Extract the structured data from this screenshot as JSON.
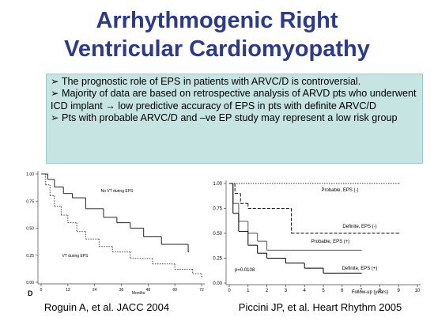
{
  "title": [
    "Arrhythmogenic Right",
    "Ventricular Cardiomyopathy"
  ],
  "bullets": [
    "➢ The prognostic role of EPS in patients with ARVC/D is controversial.",
    "➢ Majority of data are based on retrospective analysis of ARVD pts who underwent ICD implant → low predictive accuracy of EPS in pts with definite ARVC/D",
    "➢ Pts with probable ARVC/D and –ve EP study may represent a low risk group"
  ],
  "charts": [
    {
      "type": "line",
      "panel_label": "D",
      "xlabel": "Months",
      "xlim": [
        0,
        72
      ],
      "xticks": [
        0,
        12,
        24,
        36,
        48,
        60,
        72
      ],
      "ylim": [
        0,
        1
      ],
      "yticks": [
        {
          "value": 0,
          "label": "0.00"
        },
        {
          "value": 0.25,
          "label": "0.25"
        },
        {
          "value": 0.5,
          "label": "0.50"
        },
        {
          "value": 0.75,
          "label": "0.75"
        },
        {
          "value": 1,
          "label": "1.00"
        }
      ],
      "series": [
        {
          "name": "No VT during EPS",
          "color": "#222222",
          "line_style": "solid",
          "x": [
            0,
            3,
            6,
            10,
            14,
            20,
            28,
            34,
            40,
            46,
            54,
            66
          ],
          "values": [
            1,
            0.95,
            0.88,
            0.82,
            0.78,
            0.68,
            0.6,
            0.55,
            0.5,
            0.42,
            0.35,
            0.28
          ]
        },
        {
          "name": "VT during EPS",
          "color": "#444444",
          "line_style": "dotted",
          "x": [
            0,
            2,
            4,
            6,
            9,
            12,
            16,
            20,
            26,
            32,
            40,
            50,
            60,
            68,
            72
          ],
          "values": [
            1,
            0.9,
            0.8,
            0.7,
            0.62,
            0.55,
            0.47,
            0.4,
            0.33,
            0.28,
            0.22,
            0.17,
            0.12,
            0.08,
            0.05
          ]
        }
      ],
      "caption": "Roguin A, et al. JACC 2004"
    },
    {
      "type": "line",
      "xlabel": "Follow-up (years)",
      "xlim": [
        0,
        10
      ],
      "xticks": [
        0,
        1,
        2,
        3,
        4,
        5,
        6,
        7,
        8,
        9,
        10
      ],
      "ylim": [
        0,
        1
      ],
      "yticks": [
        {
          "value": 0,
          "label": "0.00"
        },
        {
          "value": 0.25,
          "label": "0.25"
        },
        {
          "value": 0.5,
          "label": "0.50"
        },
        {
          "value": 0.75,
          "label": "0.75"
        },
        {
          "value": 1,
          "label": "1.00"
        }
      ],
      "annotation": "p=0.0108",
      "series": [
        {
          "name": "Probable, EPS (-)",
          "color": "#333333",
          "line_style": "dotted",
          "x": [
            0,
            9
          ],
          "values": [
            1,
            1
          ]
        },
        {
          "name": "Definite, EPS (-)",
          "color": "#111111",
          "line_style": "dashed",
          "x": [
            0,
            0.3,
            0.6,
            1,
            3.3,
            9
          ],
          "values": [
            1,
            0.9,
            0.8,
            0.75,
            0.5,
            0.5
          ]
        },
        {
          "name": "Probable, EPS (+)",
          "color": "#555555",
          "line_style": "solid",
          "x": [
            0,
            0.2,
            0.5,
            1,
            1.5,
            2,
            7
          ],
          "values": [
            1,
            0.8,
            0.62,
            0.5,
            0.42,
            0.33,
            0.33
          ]
        },
        {
          "name": "Definite, EPS (+)",
          "color": "#000000",
          "line_style": "solid",
          "x": [
            0,
            0.2,
            0.5,
            1,
            1.5,
            2,
            3,
            4,
            5,
            7
          ],
          "values": [
            1,
            0.7,
            0.52,
            0.38,
            0.3,
            0.25,
            0.2,
            0.15,
            0.1,
            0.1
          ]
        }
      ],
      "caption": "Piccini JP, et al. Heart Rhythm 2005"
    }
  ]
}
